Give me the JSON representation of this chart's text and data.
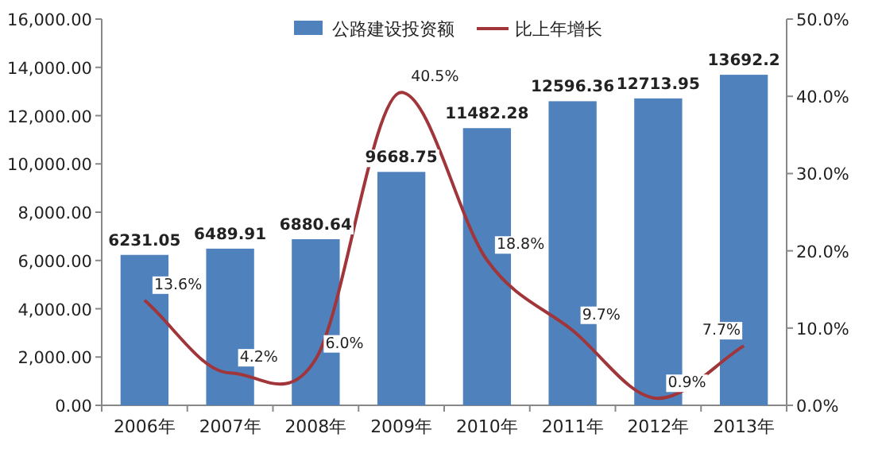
{
  "chart_data": {
    "type": "bar",
    "categories": [
      "2006年",
      "2007年",
      "2008年",
      "2009年",
      "2010年",
      "2011年",
      "2012年",
      "2013年"
    ],
    "series": [
      {
        "name": "公路建设投资额",
        "color": "#4f81bd",
        "values": [
          6231.05,
          6489.91,
          6880.64,
          9668.75,
          11482.28,
          12596.36,
          12713.95,
          13692.2
        ],
        "value_labels": [
          "6231.05",
          "6489.91",
          "6880.64",
          "9668.75",
          "11482.28",
          "12596.36",
          "12713.95",
          "13692.2"
        ]
      },
      {
        "name": "比上年增长",
        "type": "line",
        "axis": "y2",
        "color": "#a0353a",
        "values": [
          13.6,
          4.2,
          6.0,
          40.5,
          18.8,
          9.7,
          0.9,
          7.7
        ],
        "value_labels": [
          "13.6%",
          "4.2%",
          "6.0%",
          "40.5%",
          "18.8%",
          "9.7%",
          "0.9%",
          "7.7%"
        ]
      }
    ],
    "ylim": [
      0,
      16000
    ],
    "yticks": [
      {
        "value": 0,
        "label": "0.00"
      },
      {
        "value": 2000,
        "label": "2,000.00"
      },
      {
        "value": 4000,
        "label": "4,000.00"
      },
      {
        "value": 6000,
        "label": "6,000.00"
      },
      {
        "value": 8000,
        "label": "8,000.00"
      },
      {
        "value": 10000,
        "label": "10,000.00"
      },
      {
        "value": 12000,
        "label": "12,000.00"
      },
      {
        "value": 14000,
        "label": "14,000.00"
      },
      {
        "value": 16000,
        "label": "16,000.00"
      }
    ],
    "y2lim": [
      0,
      50
    ],
    "y2ticks": [
      {
        "value": 0,
        "label": "0.0%"
      },
      {
        "value": 10,
        "label": "10.0%"
      },
      {
        "value": 20,
        "label": "20.0%"
      },
      {
        "value": 30,
        "label": "30.0%"
      },
      {
        "value": 40,
        "label": "40.0%"
      },
      {
        "value": 50,
        "label": "50.0%"
      }
    ],
    "legend": "top",
    "marker": "none",
    "line_style": "solid"
  }
}
